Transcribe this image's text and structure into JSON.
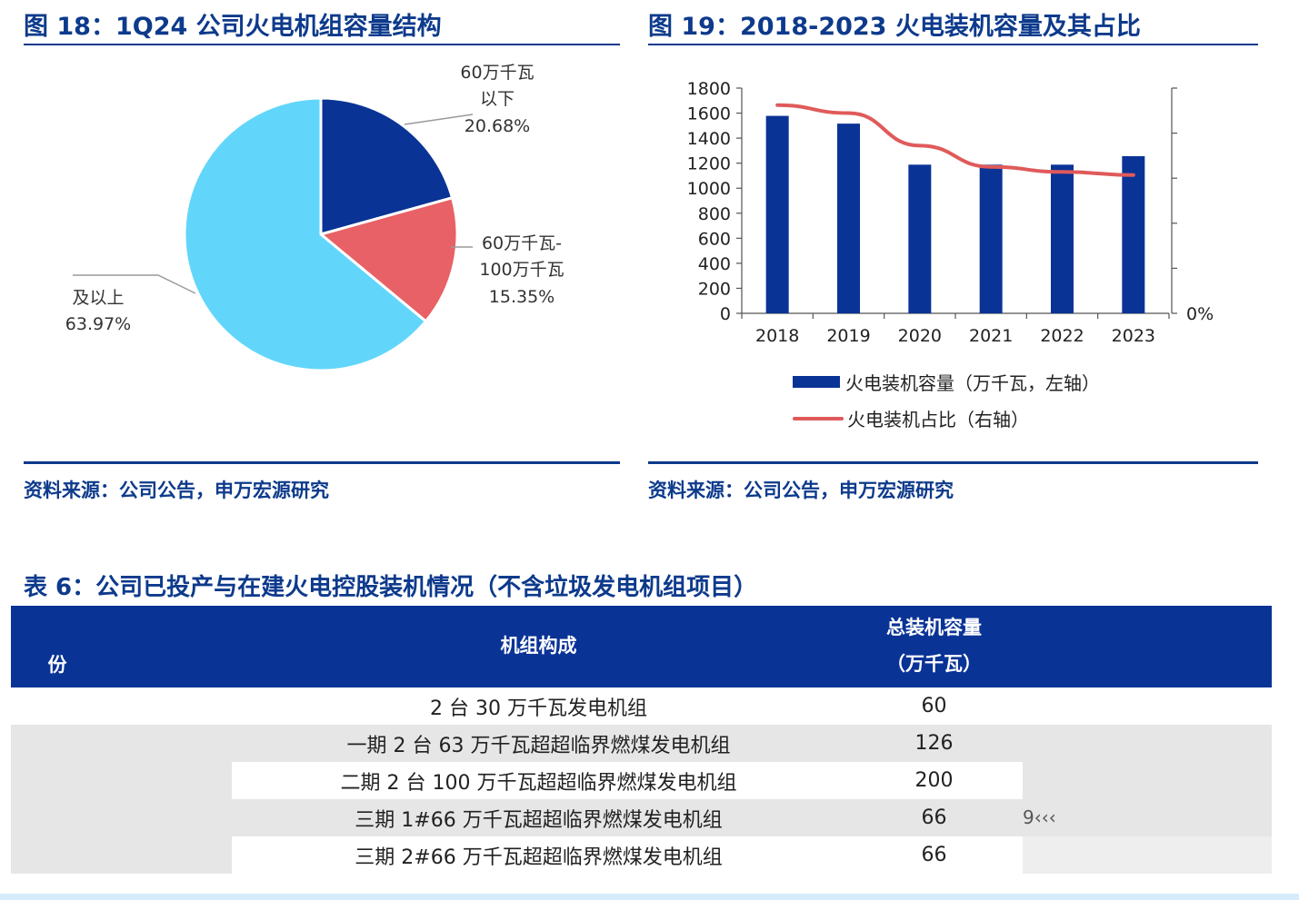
{
  "fig18": {
    "title": "图 18：1Q24 公司火电机组容量结构",
    "source": "资料来源：公司公告，申万宏源研究",
    "labels": {
      "under60": [
        "60万千瓦",
        "以下",
        "20.68%"
      ],
      "mid": [
        "60万千瓦-",
        "100万千瓦",
        "15.35%"
      ],
      "above": [
        "及以上",
        "63.97%"
      ]
    },
    "chart_data": {
      "type": "pie",
      "slices": [
        {
          "label": "60万千瓦以下",
          "value": 20.68,
          "color": "#0a3396"
        },
        {
          "label": "60万千瓦-100万千瓦",
          "value": 15.35,
          "color": "#e86166"
        },
        {
          "label": "及以上",
          "value": 63.97,
          "color": "#62d6fa"
        }
      ]
    }
  },
  "fig19": {
    "title": "图 19：2018-2023 火电装机容量及其占比",
    "source": "资料来源：公司公告，申万宏源研究",
    "right_axis_label": "0%",
    "legend": {
      "bar": "火电装机容量（万千瓦，左轴）",
      "line": "火电装机占比（右轴）"
    },
    "chart_data": {
      "type": "bar+line",
      "categories": [
        "2018",
        "2019",
        "2020",
        "2021",
        "2022",
        "2023"
      ],
      "series": [
        {
          "name": "火电装机容量（万千瓦，左轴）",
          "type": "bar",
          "axis": "left",
          "color": "#0a3396",
          "values": [
            1578,
            1516,
            1188,
            1188,
            1188,
            1256
          ]
        },
        {
          "name": "火电装机占比（右轴）",
          "type": "line",
          "axis": "right",
          "color": "#e05a5a",
          "values": [
            1664,
            1600,
            1340,
            1170,
            1130,
            1105
          ]
        }
      ],
      "ylim_left": [
        0,
        1800
      ],
      "yticks_left": [
        0,
        200,
        400,
        600,
        800,
        1000,
        1200,
        1400,
        1600,
        1800
      ],
      "grid": false
    }
  },
  "table6": {
    "title": "表 6：公司已投产与在建火电控股装机情况（不含垃圾发电机组项目）",
    "headers": {
      "col0": "份",
      "col1": "机组构成",
      "col2_line1": "总装机容量",
      "col2_line2": "（万千瓦）"
    },
    "rows": [
      {
        "composition": "2 台 30 万千瓦发电机组",
        "capacity": "60"
      },
      {
        "composition": "一期 2 台 63 万千瓦超超临界燃煤发电机组",
        "capacity": "126"
      },
      {
        "composition": "二期 2 台 100 万千瓦超超临界燃煤发电机组",
        "capacity": "200"
      },
      {
        "composition": "三期 1#66 万千瓦超超临界燃煤发电机组",
        "capacity": "66"
      },
      {
        "composition": "三期 2#66 万千瓦超超临界燃煤发电机组",
        "capacity": "66"
      }
    ],
    "stray_text": "9‹‹‹"
  }
}
